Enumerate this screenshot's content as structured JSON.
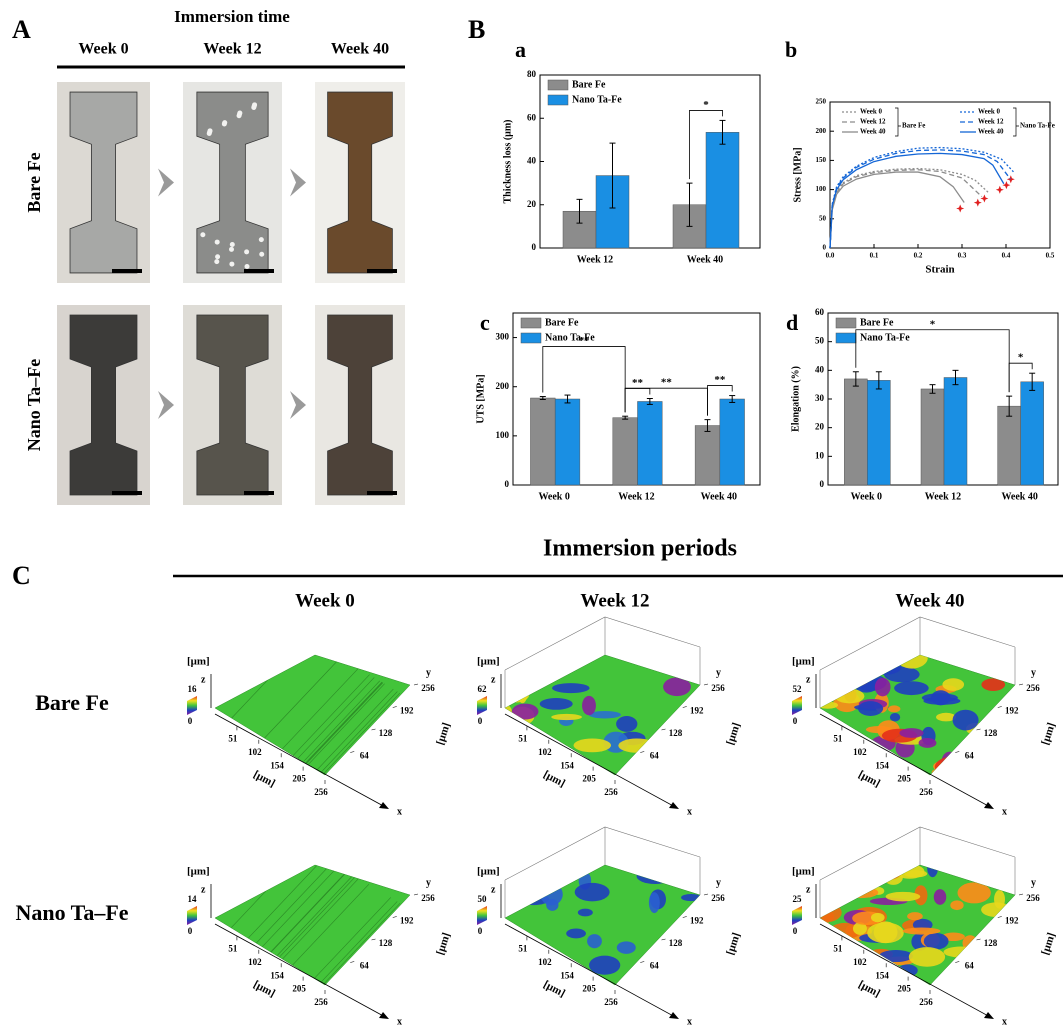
{
  "panel_a": {
    "label": "A",
    "title": "Immersion time",
    "columns": [
      "Week 0",
      "Week 12",
      "Week 40"
    ],
    "rows": [
      "Bare Fe",
      "Nano Ta–Fe"
    ]
  },
  "panel_b": {
    "label": "B"
  },
  "chart_data": [
    {
      "type": "bar",
      "panel": "a",
      "ylabel": "Thickness loss (μm)",
      "categories": [
        "Week 12",
        "Week 40"
      ],
      "series": [
        {
          "name": "Bare Fe",
          "color": "#8c8c8c",
          "values": [
            17,
            20
          ],
          "errors": [
            5.5,
            10
          ]
        },
        {
          "name": "Nano Ta-Fe",
          "color": "#1a8fe3",
          "values": [
            33.5,
            53.5
          ],
          "errors": [
            15,
            5.5
          ]
        }
      ],
      "ylim": [
        0,
        80
      ],
      "yticks": [
        0,
        20,
        40,
        60,
        80
      ],
      "annotations": [
        "*"
      ]
    },
    {
      "type": "line",
      "panel": "b",
      "xlabel": "Strain",
      "ylabel": "Stress [MPa]",
      "xlim": [
        0,
        0.5
      ],
      "xticks": [
        {
          "value": 0,
          "label": "0.0"
        },
        0.1,
        0.2,
        0.3,
        0.4,
        {
          "value": 0.5,
          "label": "0.5"
        }
      ],
      "ylim": [
        0,
        250
      ],
      "yticks": [
        0,
        50,
        100,
        150,
        200,
        250
      ],
      "groups": [
        {
          "name": "Bare Fe",
          "color": "#8c8c8c",
          "series": [
            {
              "name": "Week 0",
              "dash": "dotted",
              "x": [
                0,
                0.005,
                0.015,
                0.03,
                0.06,
                0.1,
                0.15,
                0.2,
                0.25,
                0.3,
                0.33,
                0.36
              ],
              "values": [
                0,
                70,
                98,
                112,
                124,
                131,
                135,
                136,
                134,
                126,
                116,
                95
              ]
            },
            {
              "name": "Week 12",
              "dash": "dashed",
              "x": [
                0,
                0.005,
                0.015,
                0.03,
                0.06,
                0.1,
                0.15,
                0.2,
                0.25,
                0.3,
                0.345
              ],
              "values": [
                0,
                68,
                95,
                110,
                122,
                129,
                133,
                134,
                131,
                120,
                88
              ]
            },
            {
              "name": "Week 40",
              "dash": "solid",
              "x": [
                0,
                0.005,
                0.015,
                0.03,
                0.06,
                0.1,
                0.15,
                0.2,
                0.25,
                0.28,
                0.305
              ],
              "values": [
                0,
                65,
                92,
                106,
                118,
                126,
                130,
                130,
                122,
                105,
                78
              ]
            }
          ]
        },
        {
          "name": "Nano Ta-Fe",
          "color": "#1466d6",
          "series": [
            {
              "name": "Week 0",
              "dash": "dotted",
              "x": [
                0,
                0.005,
                0.015,
                0.03,
                0.06,
                0.1,
                0.15,
                0.2,
                0.25,
                0.3,
                0.35,
                0.39,
                0.42
              ],
              "values": [
                0,
                75,
                105,
                122,
                140,
                155,
                165,
                171,
                172,
                170,
                164,
                152,
                128
              ]
            },
            {
              "name": "Week 12",
              "dash": "dashed",
              "x": [
                0,
                0.005,
                0.015,
                0.03,
                0.06,
                0.1,
                0.15,
                0.2,
                0.25,
                0.3,
                0.35,
                0.38,
                0.41
              ],
              "values": [
                0,
                73,
                103,
                120,
                138,
                152,
                162,
                167,
                168,
                166,
                160,
                148,
                118
              ]
            },
            {
              "name": "Week 40",
              "dash": "solid",
              "x": [
                0,
                0.005,
                0.015,
                0.03,
                0.06,
                0.1,
                0.15,
                0.2,
                0.25,
                0.3,
                0.35,
                0.37,
                0.395
              ],
              "values": [
                0,
                72,
                100,
                117,
                134,
                148,
                157,
                161,
                162,
                160,
                153,
                142,
                110
              ]
            }
          ]
        }
      ]
    },
    {
      "type": "bar",
      "panel": "c",
      "ylabel": "UTS [MPa]",
      "categories": [
        "Week 0",
        "Week 12",
        "Week 40"
      ],
      "series": [
        {
          "name": "Bare Fe",
          "color": "#8c8c8c",
          "values": [
            177,
            137,
            121
          ],
          "errors": [
            3,
            3,
            12
          ]
        },
        {
          "name": "Nano Ta-Fe",
          "color": "#1a8fe3",
          "values": [
            175,
            170,
            175
          ],
          "errors": [
            8,
            6,
            7
          ]
        }
      ],
      "ylim": [
        0,
        350
      ],
      "yticks": [
        0,
        100,
        200,
        300
      ],
      "annotations": [
        "**",
        "**",
        "**",
        "**"
      ]
    },
    {
      "type": "bar",
      "panel": "d",
      "ylabel": "Elongation (%)",
      "categories": [
        "Week 0",
        "Week 12",
        "Week 40"
      ],
      "series": [
        {
          "name": "Bare Fe",
          "color": "#8c8c8c",
          "values": [
            37,
            33.5,
            27.5
          ],
          "errors": [
            2.5,
            1.5,
            3.5
          ]
        },
        {
          "name": "Nano Ta-Fe",
          "color": "#1a8fe3",
          "values": [
            36.5,
            37.5,
            36
          ],
          "errors": [
            3,
            2.5,
            3
          ]
        }
      ],
      "ylim": [
        0,
        60
      ],
      "yticks": [
        0,
        10,
        20,
        30,
        40,
        50,
        60
      ],
      "annotations": [
        "*",
        "*"
      ]
    }
  ],
  "panel_c": {
    "label": "C",
    "title": "Immersion periods",
    "columns": [
      "Week 0",
      "Week 12",
      "Week 40"
    ],
    "rows": [
      "Bare Fe",
      "Nano Ta–Fe"
    ],
    "unit": "[μm]",
    "axis_names": {
      "x": "x",
      "y": "y",
      "z": "z"
    },
    "x_ticks": [
      51,
      102,
      154,
      205,
      256
    ],
    "y_ticks": [
      256,
      192,
      128,
      64
    ],
    "maps": [
      {
        "z_max": 16,
        "z_min": 0
      },
      {
        "z_max": 62,
        "z_min": 0
      },
      {
        "z_max": 52,
        "z_min": 0
      },
      {
        "z_max": 14,
        "z_min": 0
      },
      {
        "z_max": 50,
        "z_min": 0
      },
      {
        "z_max": 25,
        "z_min": 0
      }
    ]
  }
}
